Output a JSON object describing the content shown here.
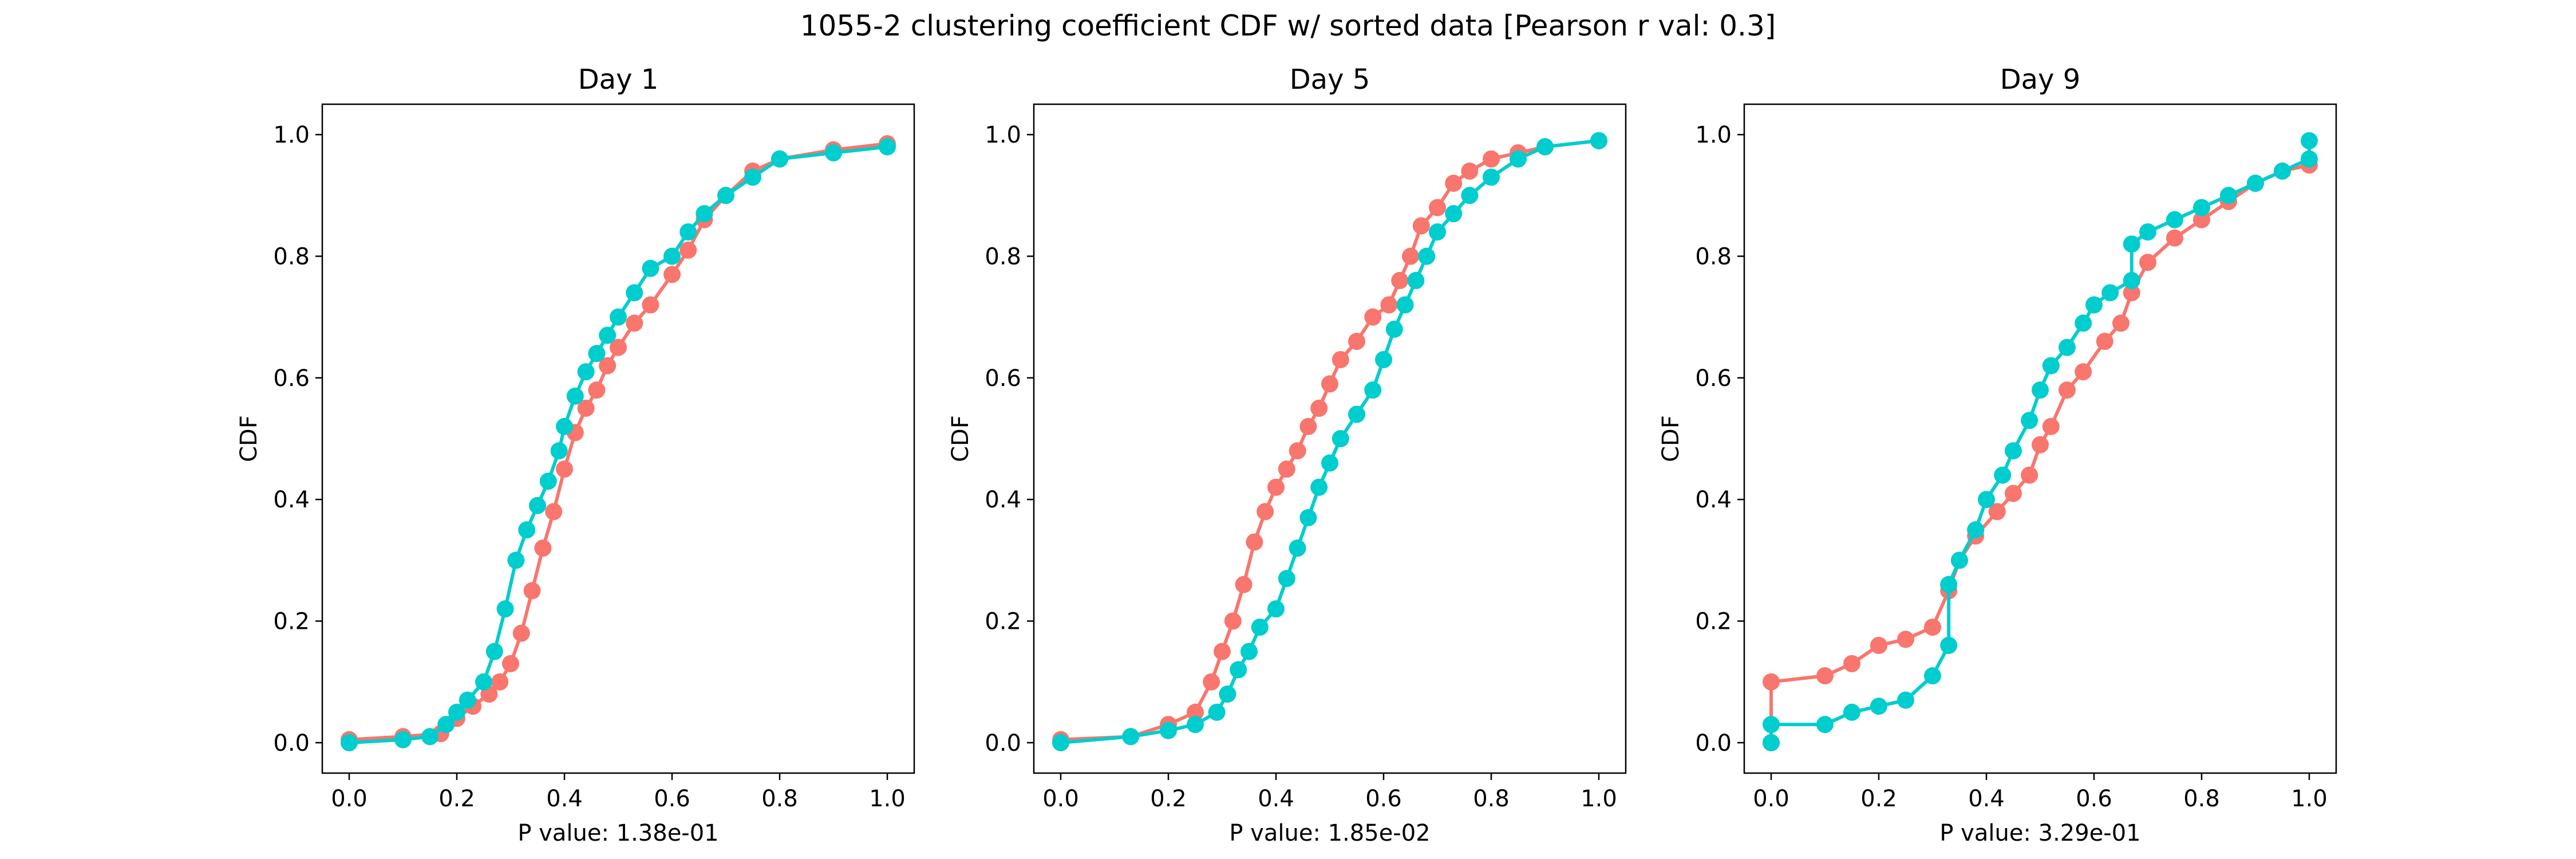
{
  "figure": {
    "title": "1055-2 clustering coefficient CDF w/ sorted data [Pearson r val: 0.3]"
  },
  "chart_data": [
    {
      "type": "line",
      "title": "Day 1",
      "xlabel": "P value: 1.38e-01",
      "ylabel": "CDF",
      "xlim": [
        -0.05,
        1.05
      ],
      "ylim": [
        -0.05,
        1.05
      ],
      "xticks": [
        "0.0",
        "0.2",
        "0.4",
        "0.6",
        "0.8",
        "1.0"
      ],
      "yticks": [
        "0.0",
        "0.2",
        "0.4",
        "0.6",
        "0.8",
        "1.0"
      ],
      "grid": false,
      "series": [
        {
          "color": "#F8766D",
          "x": [
            0.0,
            0.1,
            0.17,
            0.2,
            0.23,
            0.26,
            0.28,
            0.3,
            0.32,
            0.34,
            0.36,
            0.38,
            0.4,
            0.42,
            0.44,
            0.46,
            0.48,
            0.5,
            0.53,
            0.56,
            0.6,
            0.63,
            0.66,
            0.7,
            0.75,
            0.8,
            0.9,
            1.0
          ],
          "y": [
            0.005,
            0.01,
            0.015,
            0.04,
            0.06,
            0.08,
            0.1,
            0.13,
            0.18,
            0.25,
            0.32,
            0.38,
            0.45,
            0.51,
            0.55,
            0.58,
            0.62,
            0.65,
            0.69,
            0.72,
            0.77,
            0.81,
            0.86,
            0.9,
            0.94,
            0.96,
            0.975,
            0.985
          ]
        },
        {
          "color": "#00CDCD",
          "x": [
            0.0,
            0.1,
            0.15,
            0.18,
            0.2,
            0.22,
            0.25,
            0.27,
            0.29,
            0.31,
            0.33,
            0.35,
            0.37,
            0.39,
            0.4,
            0.42,
            0.44,
            0.46,
            0.48,
            0.5,
            0.53,
            0.56,
            0.6,
            0.63,
            0.66,
            0.7,
            0.75,
            0.8,
            0.9,
            1.0
          ],
          "y": [
            0.0,
            0.005,
            0.01,
            0.03,
            0.05,
            0.07,
            0.1,
            0.15,
            0.22,
            0.3,
            0.35,
            0.39,
            0.43,
            0.48,
            0.52,
            0.57,
            0.61,
            0.64,
            0.67,
            0.7,
            0.74,
            0.78,
            0.8,
            0.84,
            0.87,
            0.9,
            0.93,
            0.96,
            0.97,
            0.98
          ]
        }
      ]
    },
    {
      "type": "line",
      "title": "Day 5",
      "xlabel": "P value: 1.85e-02",
      "ylabel": "CDF",
      "xlim": [
        -0.05,
        1.05
      ],
      "ylim": [
        -0.05,
        1.05
      ],
      "xticks": [
        "0.0",
        "0.2",
        "0.4",
        "0.6",
        "0.8",
        "1.0"
      ],
      "yticks": [
        "0.0",
        "0.2",
        "0.4",
        "0.6",
        "0.8",
        "1.0"
      ],
      "grid": false,
      "series": [
        {
          "color": "#F8766D",
          "x": [
            0.0,
            0.13,
            0.2,
            0.25,
            0.28,
            0.3,
            0.32,
            0.34,
            0.36,
            0.38,
            0.4,
            0.42,
            0.44,
            0.46,
            0.48,
            0.5,
            0.52,
            0.55,
            0.58,
            0.61,
            0.63,
            0.65,
            0.67,
            0.7,
            0.73,
            0.76,
            0.8,
            0.85,
            0.9,
            1.0
          ],
          "y": [
            0.005,
            0.01,
            0.03,
            0.05,
            0.1,
            0.15,
            0.2,
            0.26,
            0.33,
            0.38,
            0.42,
            0.45,
            0.48,
            0.52,
            0.55,
            0.59,
            0.63,
            0.66,
            0.7,
            0.72,
            0.76,
            0.8,
            0.85,
            0.88,
            0.92,
            0.94,
            0.96,
            0.97,
            0.98,
            0.99
          ]
        },
        {
          "color": "#00CDCD",
          "x": [
            0.0,
            0.13,
            0.2,
            0.25,
            0.29,
            0.31,
            0.33,
            0.35,
            0.37,
            0.4,
            0.42,
            0.44,
            0.46,
            0.48,
            0.5,
            0.52,
            0.55,
            0.58,
            0.6,
            0.62,
            0.64,
            0.66,
            0.68,
            0.7,
            0.73,
            0.76,
            0.8,
            0.85,
            0.9,
            1.0
          ],
          "y": [
            0.0,
            0.01,
            0.02,
            0.03,
            0.05,
            0.08,
            0.12,
            0.15,
            0.19,
            0.22,
            0.27,
            0.32,
            0.37,
            0.42,
            0.46,
            0.5,
            0.54,
            0.58,
            0.63,
            0.68,
            0.72,
            0.76,
            0.8,
            0.84,
            0.87,
            0.9,
            0.93,
            0.96,
            0.98,
            0.99
          ]
        }
      ]
    },
    {
      "type": "line",
      "title": "Day 9",
      "xlabel": "P value: 3.29e-01",
      "ylabel": "CDF",
      "xlim": [
        -0.05,
        1.05
      ],
      "ylim": [
        -0.05,
        1.05
      ],
      "xticks": [
        "0.0",
        "0.2",
        "0.4",
        "0.6",
        "0.8",
        "1.0"
      ],
      "yticks": [
        "0.0",
        "0.2",
        "0.4",
        "0.6",
        "0.8",
        "1.0"
      ],
      "grid": false,
      "series": [
        {
          "color": "#F8766D",
          "x": [
            0.0,
            0.0,
            0.1,
            0.15,
            0.2,
            0.25,
            0.3,
            0.33,
            0.35,
            0.38,
            0.42,
            0.45,
            0.48,
            0.5,
            0.52,
            0.55,
            0.58,
            0.62,
            0.65,
            0.67,
            0.7,
            0.75,
            0.8,
            0.85,
            0.9,
            0.95,
            1.0
          ],
          "y": [
            0.0,
            0.1,
            0.11,
            0.13,
            0.16,
            0.17,
            0.19,
            0.25,
            0.3,
            0.34,
            0.38,
            0.41,
            0.44,
            0.49,
            0.52,
            0.58,
            0.61,
            0.66,
            0.69,
            0.74,
            0.79,
            0.83,
            0.86,
            0.89,
            0.92,
            0.94,
            0.95
          ]
        },
        {
          "color": "#00CDCD",
          "x": [
            0.0,
            0.0,
            0.1,
            0.15,
            0.2,
            0.25,
            0.3,
            0.33,
            0.33,
            0.35,
            0.38,
            0.4,
            0.43,
            0.45,
            0.48,
            0.5,
            0.52,
            0.55,
            0.58,
            0.6,
            0.63,
            0.67,
            0.67,
            0.7,
            0.75,
            0.8,
            0.85,
            0.9,
            0.95,
            1.0,
            1.0
          ],
          "y": [
            0.0,
            0.03,
            0.03,
            0.05,
            0.06,
            0.07,
            0.11,
            0.16,
            0.26,
            0.3,
            0.35,
            0.4,
            0.44,
            0.48,
            0.53,
            0.58,
            0.62,
            0.65,
            0.69,
            0.72,
            0.74,
            0.76,
            0.82,
            0.84,
            0.86,
            0.88,
            0.9,
            0.92,
            0.94,
            0.96,
            0.99
          ]
        }
      ]
    }
  ]
}
